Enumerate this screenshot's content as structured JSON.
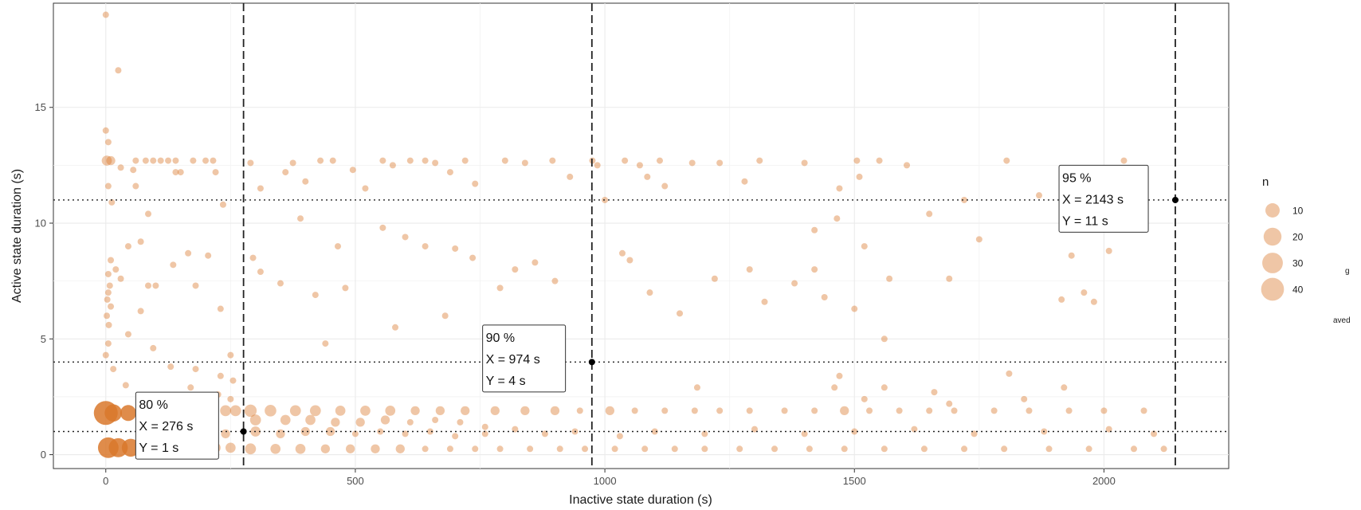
{
  "chart_data": {
    "type": "scatter",
    "title": "",
    "xlabel": "Inactive state duration (s)",
    "ylabel": "Active state duration (s)",
    "xlim": [
      -105,
      2250
    ],
    "ylim": [
      -0.6,
      19.5
    ],
    "xticks": [
      0,
      500,
      1000,
      1500,
      2000
    ],
    "yticks": [
      0,
      5,
      10,
      15
    ],
    "grid": true,
    "point_color": "#d9782b",
    "legend": {
      "title": "n",
      "position": "right",
      "entries": [
        {
          "label": "10",
          "value": 10
        },
        {
          "label": "20",
          "value": 20
        },
        {
          "label": "30",
          "value": 30
        },
        {
          "label": "40",
          "value": 40
        }
      ]
    },
    "percentile_markers": [
      {
        "x": 276,
        "y": 1,
        "label": "80 %",
        "x_text": "X = 276 s",
        "y_text": "Y = 1 s",
        "box_corner": [
          60,
          2.7
        ]
      },
      {
        "x": 974,
        "y": 4,
        "label": "90 %",
        "x_text": "X = 974 s",
        "y_text": "Y = 4 s",
        "box_corner": [
          755,
          5.6
        ]
      },
      {
        "x": 2143,
        "y": 11,
        "label": "95 %",
        "x_text": "X = 2143 s",
        "y_text": "Y = 11 s",
        "box_corner": [
          1910,
          12.5
        ]
      }
    ],
    "points": [
      {
        "x": 0,
        "y": 1.8,
        "n": 45
      },
      {
        "x": 5,
        "y": 0.3,
        "n": 30
      },
      {
        "x": 25,
        "y": 0.3,
        "n": 24
      },
      {
        "x": 50,
        "y": 0.3,
        "n": 20
      },
      {
        "x": 15,
        "y": 1.8,
        "n": 18
      },
      {
        "x": 45,
        "y": 1.8,
        "n": 14
      },
      {
        "x": 0,
        "y": 19.0,
        "n": 1
      },
      {
        "x": 25,
        "y": 16.6,
        "n": 1
      },
      {
        "x": 0,
        "y": 14.0,
        "n": 1
      },
      {
        "x": 5,
        "y": 13.5,
        "n": 1
      },
      {
        "x": 2,
        "y": 12.7,
        "n": 3
      },
      {
        "x": 10,
        "y": 12.7,
        "n": 2
      },
      {
        "x": 60,
        "y": 12.7,
        "n": 1
      },
      {
        "x": 80,
        "y": 12.7,
        "n": 1
      },
      {
        "x": 95,
        "y": 12.7,
        "n": 1
      },
      {
        "x": 110,
        "y": 12.7,
        "n": 1
      },
      {
        "x": 125,
        "y": 12.7,
        "n": 1
      },
      {
        "x": 140,
        "y": 12.7,
        "n": 1
      },
      {
        "x": 175,
        "y": 12.7,
        "n": 1
      },
      {
        "x": 200,
        "y": 12.7,
        "n": 1
      },
      {
        "x": 215,
        "y": 12.7,
        "n": 1
      },
      {
        "x": 30,
        "y": 12.4,
        "n": 1
      },
      {
        "x": 55,
        "y": 12.3,
        "n": 1
      },
      {
        "x": 140,
        "y": 12.2,
        "n": 1
      },
      {
        "x": 150,
        "y": 12.2,
        "n": 1
      },
      {
        "x": 220,
        "y": 12.2,
        "n": 1
      },
      {
        "x": 5,
        "y": 11.6,
        "n": 1
      },
      {
        "x": 60,
        "y": 11.6,
        "n": 1
      },
      {
        "x": 12,
        "y": 10.9,
        "n": 1
      },
      {
        "x": 235,
        "y": 10.8,
        "n": 1
      },
      {
        "x": 85,
        "y": 10.4,
        "n": 1
      },
      {
        "x": 70,
        "y": 9.2,
        "n": 1
      },
      {
        "x": 45,
        "y": 9.0,
        "n": 1
      },
      {
        "x": 10,
        "y": 8.4,
        "n": 1
      },
      {
        "x": 20,
        "y": 8.0,
        "n": 1
      },
      {
        "x": 5,
        "y": 7.8,
        "n": 1
      },
      {
        "x": 30,
        "y": 7.6,
        "n": 1
      },
      {
        "x": 8,
        "y": 7.3,
        "n": 1
      },
      {
        "x": 5,
        "y": 7.0,
        "n": 1
      },
      {
        "x": 3,
        "y": 6.7,
        "n": 1
      },
      {
        "x": 10,
        "y": 6.4,
        "n": 1
      },
      {
        "x": 2,
        "y": 6.0,
        "n": 1
      },
      {
        "x": 6,
        "y": 5.6,
        "n": 1
      },
      {
        "x": 85,
        "y": 7.3,
        "n": 1
      },
      {
        "x": 100,
        "y": 7.3,
        "n": 1
      },
      {
        "x": 135,
        "y": 8.2,
        "n": 1
      },
      {
        "x": 165,
        "y": 8.7,
        "n": 1
      },
      {
        "x": 205,
        "y": 8.6,
        "n": 1
      },
      {
        "x": 180,
        "y": 7.3,
        "n": 1
      },
      {
        "x": 230,
        "y": 6.3,
        "n": 1
      },
      {
        "x": 45,
        "y": 5.2,
        "n": 1
      },
      {
        "x": 70,
        "y": 6.2,
        "n": 1
      },
      {
        "x": 95,
        "y": 4.6,
        "n": 1
      },
      {
        "x": 5,
        "y": 4.8,
        "n": 1
      },
      {
        "x": 0,
        "y": 4.3,
        "n": 1
      },
      {
        "x": 15,
        "y": 3.7,
        "n": 1
      },
      {
        "x": 130,
        "y": 3.8,
        "n": 1
      },
      {
        "x": 180,
        "y": 3.7,
        "n": 1
      },
      {
        "x": 230,
        "y": 3.4,
        "n": 1
      },
      {
        "x": 255,
        "y": 3.2,
        "n": 1
      },
      {
        "x": 40,
        "y": 3.0,
        "n": 1
      },
      {
        "x": 250,
        "y": 4.3,
        "n": 1
      },
      {
        "x": 290,
        "y": 12.6,
        "n": 1
      },
      {
        "x": 360,
        "y": 12.2,
        "n": 1
      },
      {
        "x": 375,
        "y": 12.6,
        "n": 1
      },
      {
        "x": 430,
        "y": 12.7,
        "n": 1
      },
      {
        "x": 455,
        "y": 12.7,
        "n": 1
      },
      {
        "x": 495,
        "y": 12.3,
        "n": 1
      },
      {
        "x": 555,
        "y": 12.7,
        "n": 1
      },
      {
        "x": 575,
        "y": 12.5,
        "n": 1
      },
      {
        "x": 610,
        "y": 12.7,
        "n": 1
      },
      {
        "x": 640,
        "y": 12.7,
        "n": 1
      },
      {
        "x": 660,
        "y": 12.6,
        "n": 1
      },
      {
        "x": 690,
        "y": 12.2,
        "n": 1
      },
      {
        "x": 720,
        "y": 12.7,
        "n": 1
      },
      {
        "x": 800,
        "y": 12.7,
        "n": 1
      },
      {
        "x": 840,
        "y": 12.6,
        "n": 1
      },
      {
        "x": 895,
        "y": 12.7,
        "n": 1
      },
      {
        "x": 930,
        "y": 12.0,
        "n": 1
      },
      {
        "x": 975,
        "y": 12.7,
        "n": 1
      },
      {
        "x": 985,
        "y": 12.5,
        "n": 1
      },
      {
        "x": 1040,
        "y": 12.7,
        "n": 1
      },
      {
        "x": 1070,
        "y": 12.5,
        "n": 1
      },
      {
        "x": 1085,
        "y": 12.0,
        "n": 1
      },
      {
        "x": 1110,
        "y": 12.7,
        "n": 1
      },
      {
        "x": 1175,
        "y": 12.6,
        "n": 1
      },
      {
        "x": 1230,
        "y": 12.6,
        "n": 1
      },
      {
        "x": 1310,
        "y": 12.7,
        "n": 1
      },
      {
        "x": 1400,
        "y": 12.6,
        "n": 1
      },
      {
        "x": 1505,
        "y": 12.7,
        "n": 1
      },
      {
        "x": 1550,
        "y": 12.7,
        "n": 1
      },
      {
        "x": 1605,
        "y": 12.5,
        "n": 1
      },
      {
        "x": 1805,
        "y": 12.7,
        "n": 1
      },
      {
        "x": 2040,
        "y": 12.7,
        "n": 1
      },
      {
        "x": 310,
        "y": 11.5,
        "n": 1
      },
      {
        "x": 400,
        "y": 11.8,
        "n": 1
      },
      {
        "x": 520,
        "y": 11.5,
        "n": 1
      },
      {
        "x": 740,
        "y": 11.7,
        "n": 1
      },
      {
        "x": 1120,
        "y": 11.6,
        "n": 1
      },
      {
        "x": 1280,
        "y": 11.8,
        "n": 1
      },
      {
        "x": 1470,
        "y": 11.5,
        "n": 1
      },
      {
        "x": 1510,
        "y": 12.0,
        "n": 1
      },
      {
        "x": 1720,
        "y": 11.0,
        "n": 1
      },
      {
        "x": 1870,
        "y": 11.2,
        "n": 1
      },
      {
        "x": 1000,
        "y": 11.0,
        "n": 1
      },
      {
        "x": 390,
        "y": 10.2,
        "n": 1
      },
      {
        "x": 465,
        "y": 9.0,
        "n": 1
      },
      {
        "x": 555,
        "y": 9.8,
        "n": 1
      },
      {
        "x": 600,
        "y": 9.4,
        "n": 1
      },
      {
        "x": 640,
        "y": 9.0,
        "n": 1
      },
      {
        "x": 700,
        "y": 8.9,
        "n": 1
      },
      {
        "x": 735,
        "y": 8.5,
        "n": 1
      },
      {
        "x": 790,
        "y": 7.2,
        "n": 1
      },
      {
        "x": 820,
        "y": 8.0,
        "n": 1
      },
      {
        "x": 860,
        "y": 8.3,
        "n": 1
      },
      {
        "x": 900,
        "y": 7.5,
        "n": 1
      },
      {
        "x": 1035,
        "y": 8.7,
        "n": 1
      },
      {
        "x": 1050,
        "y": 8.4,
        "n": 1
      },
      {
        "x": 1090,
        "y": 7.0,
        "n": 1
      },
      {
        "x": 1150,
        "y": 6.1,
        "n": 1
      },
      {
        "x": 1220,
        "y": 7.6,
        "n": 1
      },
      {
        "x": 1290,
        "y": 8.0,
        "n": 1
      },
      {
        "x": 1320,
        "y": 6.6,
        "n": 1
      },
      {
        "x": 1380,
        "y": 7.4,
        "n": 1
      },
      {
        "x": 1420,
        "y": 8.0,
        "n": 1
      },
      {
        "x": 1440,
        "y": 6.8,
        "n": 1
      },
      {
        "x": 1520,
        "y": 9.0,
        "n": 1
      },
      {
        "x": 1570,
        "y": 7.6,
        "n": 1
      },
      {
        "x": 1690,
        "y": 7.6,
        "n": 1
      },
      {
        "x": 1750,
        "y": 9.3,
        "n": 1
      },
      {
        "x": 1935,
        "y": 8.6,
        "n": 1
      },
      {
        "x": 1960,
        "y": 7.0,
        "n": 1
      },
      {
        "x": 1980,
        "y": 6.6,
        "n": 1
      },
      {
        "x": 1915,
        "y": 6.7,
        "n": 1
      },
      {
        "x": 2010,
        "y": 8.8,
        "n": 1
      },
      {
        "x": 295,
        "y": 8.5,
        "n": 1
      },
      {
        "x": 310,
        "y": 7.9,
        "n": 1
      },
      {
        "x": 350,
        "y": 7.4,
        "n": 1
      },
      {
        "x": 420,
        "y": 6.9,
        "n": 1
      },
      {
        "x": 480,
        "y": 7.2,
        "n": 1
      },
      {
        "x": 580,
        "y": 5.5,
        "n": 1
      },
      {
        "x": 680,
        "y": 6.0,
        "n": 1
      },
      {
        "x": 1500,
        "y": 6.3,
        "n": 1
      },
      {
        "x": 1560,
        "y": 5.0,
        "n": 1
      },
      {
        "x": 1420,
        "y": 9.7,
        "n": 1
      },
      {
        "x": 1650,
        "y": 10.4,
        "n": 1
      },
      {
        "x": 1465,
        "y": 10.2,
        "n": 1
      },
      {
        "x": 440,
        "y": 4.8,
        "n": 1
      },
      {
        "x": 290,
        "y": 1.9,
        "n": 6
      },
      {
        "x": 330,
        "y": 1.9,
        "n": 5
      },
      {
        "x": 380,
        "y": 1.9,
        "n": 4
      },
      {
        "x": 420,
        "y": 1.9,
        "n": 4
      },
      {
        "x": 470,
        "y": 1.9,
        "n": 3
      },
      {
        "x": 520,
        "y": 1.9,
        "n": 3
      },
      {
        "x": 570,
        "y": 1.9,
        "n": 3
      },
      {
        "x": 620,
        "y": 1.9,
        "n": 2
      },
      {
        "x": 670,
        "y": 1.9,
        "n": 2
      },
      {
        "x": 720,
        "y": 1.9,
        "n": 2
      },
      {
        "x": 780,
        "y": 1.9,
        "n": 2
      },
      {
        "x": 840,
        "y": 1.9,
        "n": 2
      },
      {
        "x": 900,
        "y": 1.9,
        "n": 2
      },
      {
        "x": 950,
        "y": 1.9,
        "n": 1
      },
      {
        "x": 1010,
        "y": 1.9,
        "n": 2
      },
      {
        "x": 1060,
        "y": 1.9,
        "n": 1
      },
      {
        "x": 1120,
        "y": 1.9,
        "n": 1
      },
      {
        "x": 1180,
        "y": 1.9,
        "n": 1
      },
      {
        "x": 1230,
        "y": 1.9,
        "n": 1
      },
      {
        "x": 1290,
        "y": 1.9,
        "n": 1
      },
      {
        "x": 1360,
        "y": 1.9,
        "n": 1
      },
      {
        "x": 1420,
        "y": 1.9,
        "n": 1
      },
      {
        "x": 1480,
        "y": 1.9,
        "n": 2
      },
      {
        "x": 1530,
        "y": 1.9,
        "n": 1
      },
      {
        "x": 1590,
        "y": 1.9,
        "n": 1
      },
      {
        "x": 1650,
        "y": 1.9,
        "n": 1
      },
      {
        "x": 1700,
        "y": 1.9,
        "n": 1
      },
      {
        "x": 1780,
        "y": 1.9,
        "n": 1
      },
      {
        "x": 1850,
        "y": 1.9,
        "n": 1
      },
      {
        "x": 1930,
        "y": 1.9,
        "n": 1
      },
      {
        "x": 2000,
        "y": 1.9,
        "n": 1
      },
      {
        "x": 2080,
        "y": 1.9,
        "n": 1
      },
      {
        "x": 300,
        "y": 1.5,
        "n": 4
      },
      {
        "x": 360,
        "y": 1.5,
        "n": 3
      },
      {
        "x": 410,
        "y": 1.5,
        "n": 3
      },
      {
        "x": 460,
        "y": 1.4,
        "n": 2
      },
      {
        "x": 510,
        "y": 1.4,
        "n": 2
      },
      {
        "x": 560,
        "y": 1.5,
        "n": 2
      },
      {
        "x": 610,
        "y": 1.4,
        "n": 1
      },
      {
        "x": 660,
        "y": 1.5,
        "n": 1
      },
      {
        "x": 710,
        "y": 1.4,
        "n": 1
      },
      {
        "x": 760,
        "y": 1.2,
        "n": 1
      },
      {
        "x": 300,
        "y": 1.0,
        "n": 3
      },
      {
        "x": 350,
        "y": 0.9,
        "n": 2
      },
      {
        "x": 400,
        "y": 1.0,
        "n": 2
      },
      {
        "x": 450,
        "y": 1.0,
        "n": 2
      },
      {
        "x": 500,
        "y": 0.9,
        "n": 1
      },
      {
        "x": 550,
        "y": 1.0,
        "n": 1
      },
      {
        "x": 600,
        "y": 0.9,
        "n": 1
      },
      {
        "x": 650,
        "y": 1.0,
        "n": 1
      },
      {
        "x": 700,
        "y": 0.8,
        "n": 1
      },
      {
        "x": 760,
        "y": 0.9,
        "n": 1
      },
      {
        "x": 820,
        "y": 1.1,
        "n": 1
      },
      {
        "x": 880,
        "y": 0.9,
        "n": 1
      },
      {
        "x": 940,
        "y": 1.0,
        "n": 1
      },
      {
        "x": 1030,
        "y": 0.8,
        "n": 1
      },
      {
        "x": 1100,
        "y": 1.0,
        "n": 1
      },
      {
        "x": 1200,
        "y": 0.9,
        "n": 1
      },
      {
        "x": 1300,
        "y": 1.1,
        "n": 1
      },
      {
        "x": 1400,
        "y": 0.9,
        "n": 1
      },
      {
        "x": 1500,
        "y": 1.0,
        "n": 1
      },
      {
        "x": 1620,
        "y": 1.1,
        "n": 1
      },
      {
        "x": 1740,
        "y": 0.9,
        "n": 1
      },
      {
        "x": 1880,
        "y": 1.0,
        "n": 1
      },
      {
        "x": 2010,
        "y": 1.1,
        "n": 1
      },
      {
        "x": 2100,
        "y": 0.9,
        "n": 1
      },
      {
        "x": 290,
        "y": 0.25,
        "n": 4
      },
      {
        "x": 340,
        "y": 0.25,
        "n": 3
      },
      {
        "x": 390,
        "y": 0.25,
        "n": 3
      },
      {
        "x": 440,
        "y": 0.25,
        "n": 2
      },
      {
        "x": 490,
        "y": 0.25,
        "n": 2
      },
      {
        "x": 540,
        "y": 0.25,
        "n": 2
      },
      {
        "x": 590,
        "y": 0.25,
        "n": 2
      },
      {
        "x": 640,
        "y": 0.25,
        "n": 1
      },
      {
        "x": 690,
        "y": 0.25,
        "n": 1
      },
      {
        "x": 740,
        "y": 0.25,
        "n": 1
      },
      {
        "x": 790,
        "y": 0.25,
        "n": 1
      },
      {
        "x": 850,
        "y": 0.25,
        "n": 1
      },
      {
        "x": 910,
        "y": 0.25,
        "n": 1
      },
      {
        "x": 960,
        "y": 0.25,
        "n": 1
      },
      {
        "x": 1020,
        "y": 0.25,
        "n": 1
      },
      {
        "x": 1080,
        "y": 0.25,
        "n": 1
      },
      {
        "x": 1140,
        "y": 0.25,
        "n": 1
      },
      {
        "x": 1200,
        "y": 0.25,
        "n": 1
      },
      {
        "x": 1270,
        "y": 0.25,
        "n": 1
      },
      {
        "x": 1340,
        "y": 0.25,
        "n": 1
      },
      {
        "x": 1410,
        "y": 0.25,
        "n": 1
      },
      {
        "x": 1480,
        "y": 0.25,
        "n": 1
      },
      {
        "x": 1560,
        "y": 0.25,
        "n": 1
      },
      {
        "x": 1640,
        "y": 0.25,
        "n": 1
      },
      {
        "x": 1720,
        "y": 0.25,
        "n": 1
      },
      {
        "x": 1800,
        "y": 0.25,
        "n": 1
      },
      {
        "x": 1890,
        "y": 0.25,
        "n": 1
      },
      {
        "x": 1970,
        "y": 0.25,
        "n": 1
      },
      {
        "x": 2060,
        "y": 0.25,
        "n": 1
      },
      {
        "x": 2120,
        "y": 0.25,
        "n": 1
      },
      {
        "x": 160,
        "y": 1.9,
        "n": 4
      },
      {
        "x": 200,
        "y": 1.9,
        "n": 4
      },
      {
        "x": 240,
        "y": 1.9,
        "n": 4
      },
      {
        "x": 260,
        "y": 1.9,
        "n": 4
      },
      {
        "x": 180,
        "y": 0.3,
        "n": 3
      },
      {
        "x": 220,
        "y": 0.3,
        "n": 3
      },
      {
        "x": 250,
        "y": 0.3,
        "n": 3
      },
      {
        "x": 150,
        "y": 0.9,
        "n": 2
      },
      {
        "x": 200,
        "y": 1.0,
        "n": 2
      },
      {
        "x": 240,
        "y": 0.9,
        "n": 2
      },
      {
        "x": 130,
        "y": 2.5,
        "n": 1
      },
      {
        "x": 170,
        "y": 2.9,
        "n": 1
      },
      {
        "x": 225,
        "y": 2.6,
        "n": 1
      },
      {
        "x": 250,
        "y": 2.4,
        "n": 1
      },
      {
        "x": 870,
        "y": 2.9,
        "n": 1
      },
      {
        "x": 1185,
        "y": 2.9,
        "n": 1
      },
      {
        "x": 1470,
        "y": 3.4,
        "n": 1
      },
      {
        "x": 1520,
        "y": 2.4,
        "n": 1
      },
      {
        "x": 1560,
        "y": 2.9,
        "n": 1
      },
      {
        "x": 1660,
        "y": 2.7,
        "n": 1
      },
      {
        "x": 1690,
        "y": 2.2,
        "n": 1
      },
      {
        "x": 1840,
        "y": 2.4,
        "n": 1
      },
      {
        "x": 1920,
        "y": 2.9,
        "n": 1
      },
      {
        "x": 1810,
        "y": 3.5,
        "n": 1
      },
      {
        "x": 1460,
        "y": 2.9,
        "n": 1
      }
    ]
  },
  "stray_text": {
    "line1": "g",
    "line2": "aved"
  }
}
